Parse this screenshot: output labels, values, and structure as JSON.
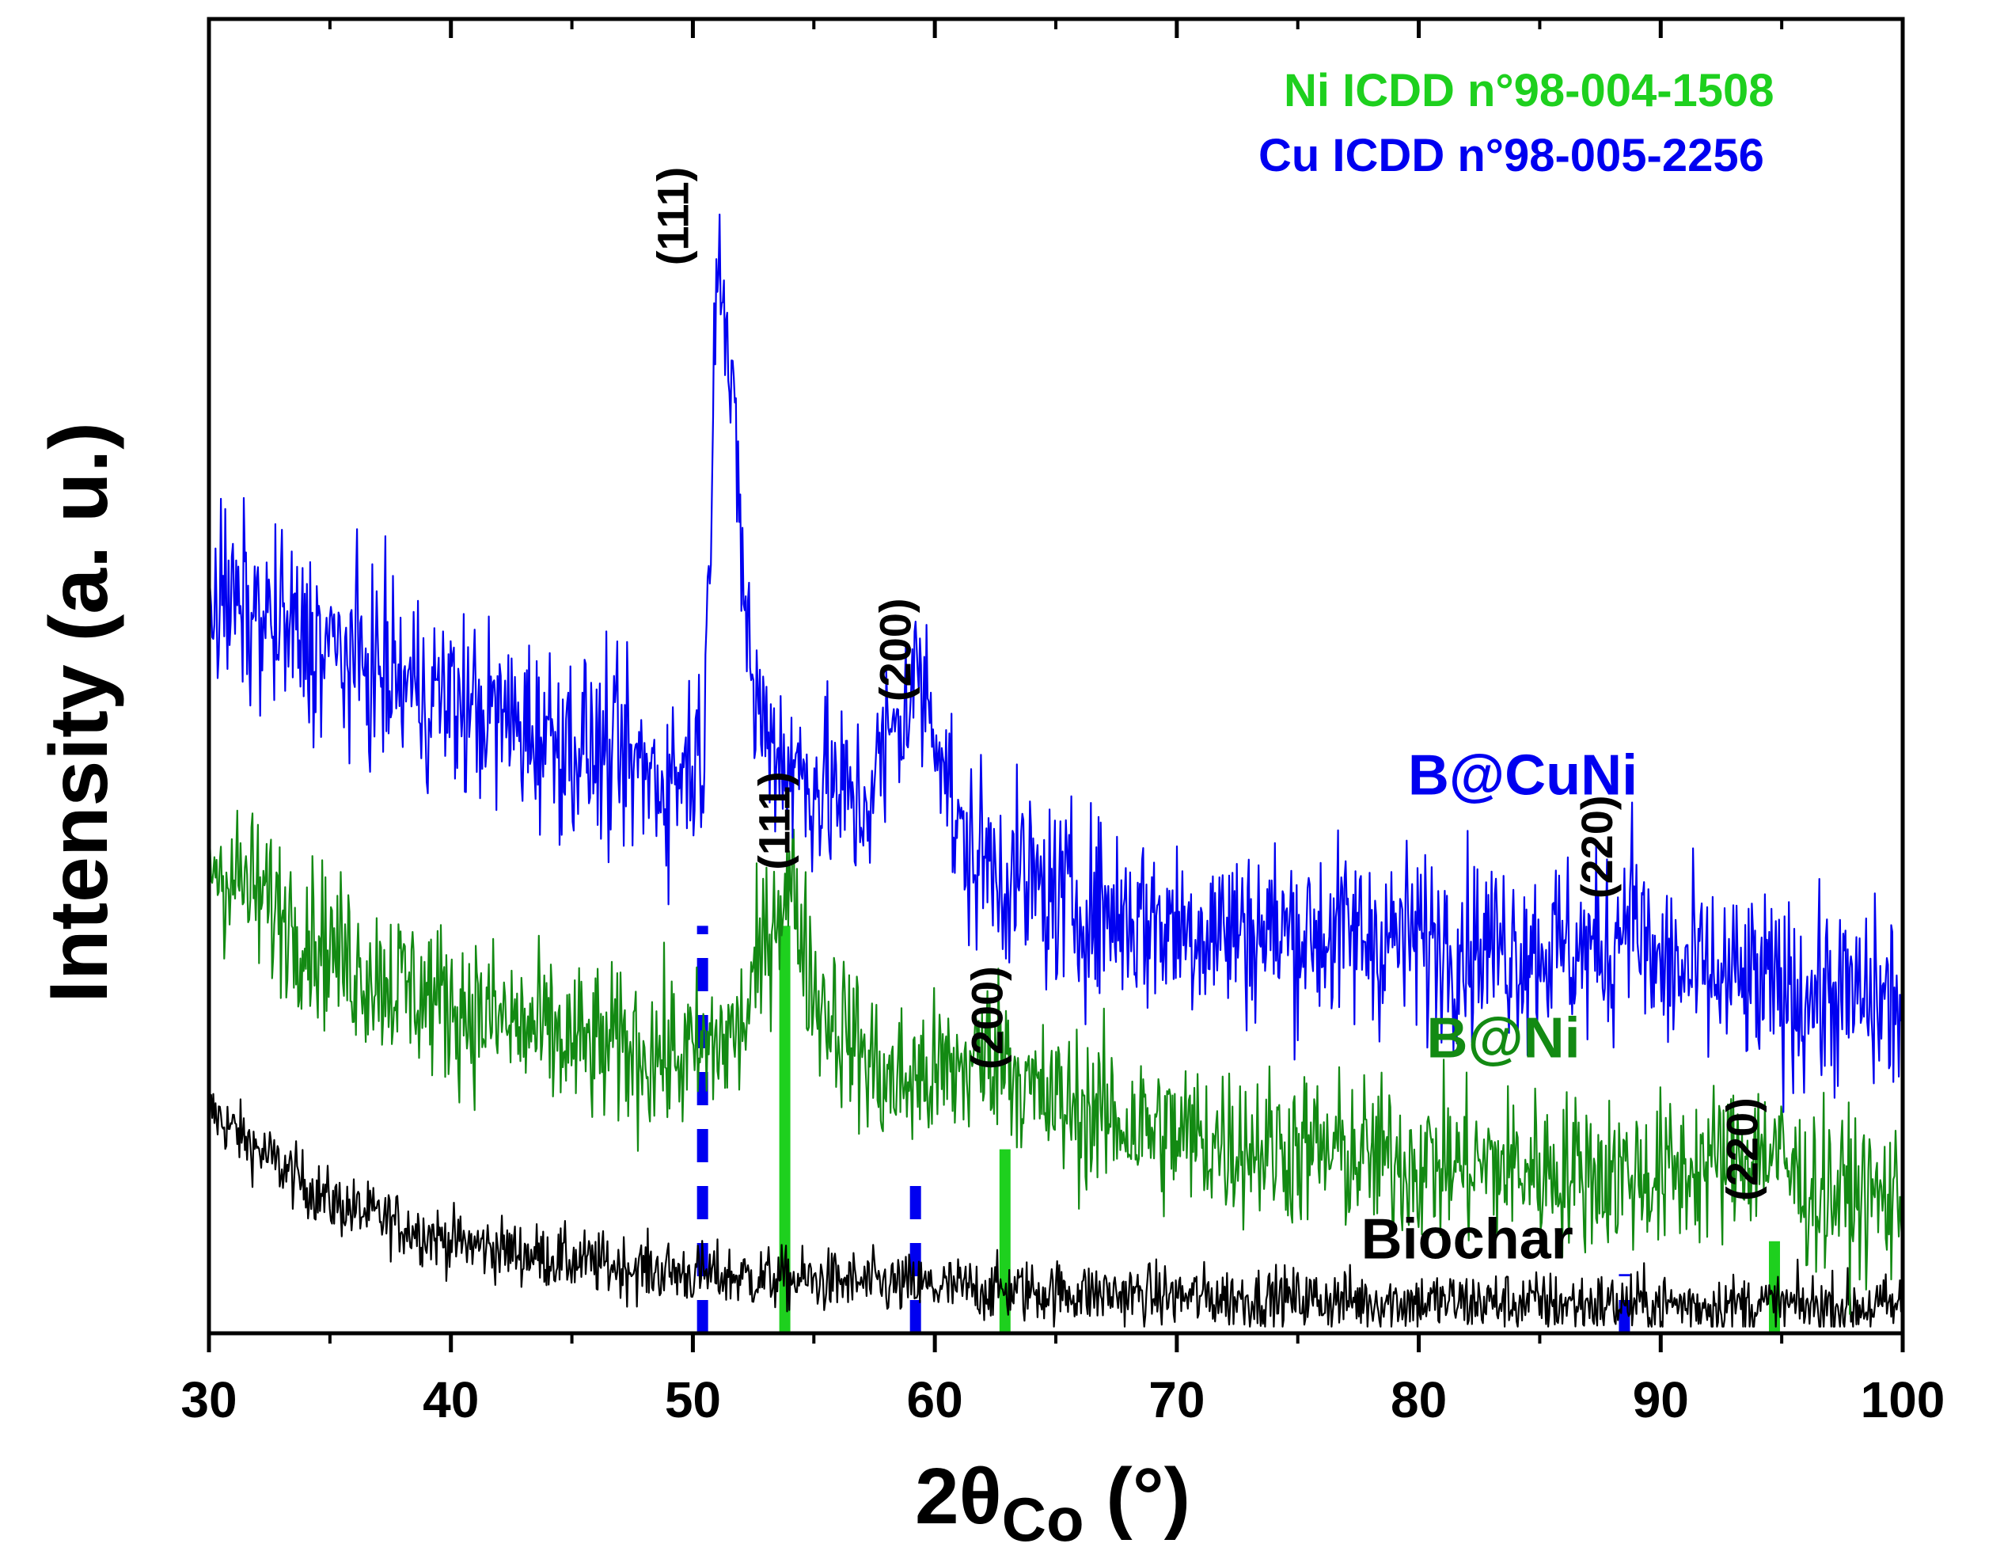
{
  "chart_data": {
    "type": "line",
    "title": "",
    "xlabel_main": "2θ",
    "xlabel_sub": "Co",
    "xlabel_unit": " (°)",
    "ylabel": "Intensity (a. u.)",
    "xlim": [
      30,
      100
    ],
    "ylim": [
      0,
      1
    ],
    "x_ticks": [
      30,
      40,
      50,
      60,
      70,
      80,
      90,
      100
    ],
    "x_tick_labels": [
      "30",
      "40",
      "50",
      "60",
      "70",
      "80",
      "90",
      "100"
    ],
    "y_ticks_shown": false,
    "grid": false,
    "legend": [
      {
        "text": "Ni ICDD n°98-004-1508",
        "color": "#1ed01e"
      },
      {
        "text": "Cu ICDD n°98-005-2256",
        "color": "#0000f0"
      }
    ],
    "series": [
      {
        "name": "B@CuNi",
        "label": "B@CuNi",
        "color": "#0000f0",
        "noise": 0.035,
        "profile": [
          [
            30,
            0.56
          ],
          [
            35,
            0.52
          ],
          [
            40,
            0.48
          ],
          [
            45,
            0.45
          ],
          [
            49,
            0.42
          ],
          [
            50.5,
            0.45
          ],
          [
            51.0,
            0.86
          ],
          [
            51.6,
            0.7
          ],
          [
            52.5,
            0.48
          ],
          [
            54,
            0.43
          ],
          [
            57,
            0.4
          ],
          [
            59.3,
            0.5
          ],
          [
            60.2,
            0.46
          ],
          [
            61,
            0.37
          ],
          [
            65,
            0.33
          ],
          [
            70,
            0.31
          ],
          [
            80,
            0.3
          ],
          [
            88,
            0.29
          ],
          [
            88.7,
            0.34
          ],
          [
            89.5,
            0.28
          ],
          [
            95,
            0.26
          ],
          [
            100,
            0.25
          ]
        ]
      },
      {
        "name": "B@Ni",
        "label": "B@Ni",
        "color": "#138a13",
        "noise": 0.03,
        "profile": [
          [
            30,
            0.36
          ],
          [
            33,
            0.32
          ],
          [
            36,
            0.28
          ],
          [
            40,
            0.25
          ],
          [
            45,
            0.22
          ],
          [
            50,
            0.21
          ],
          [
            52,
            0.23
          ],
          [
            53.5,
            0.33
          ],
          [
            54.1,
            0.34
          ],
          [
            55,
            0.26
          ],
          [
            58,
            0.19
          ],
          [
            61,
            0.2
          ],
          [
            62.8,
            0.22
          ],
          [
            64,
            0.18
          ],
          [
            70,
            0.15
          ],
          [
            80,
            0.13
          ],
          [
            90,
            0.12
          ],
          [
            94.5,
            0.14
          ],
          [
            96,
            0.11
          ],
          [
            100,
            0.1
          ]
        ]
      },
      {
        "name": "Biochar",
        "label": "Biochar",
        "color": "#000000",
        "noise": 0.012,
        "profile": [
          [
            30,
            0.17
          ],
          [
            32,
            0.14
          ],
          [
            35,
            0.1
          ],
          [
            40,
            0.07
          ],
          [
            45,
            0.055
          ],
          [
            50,
            0.045
          ],
          [
            60,
            0.035
          ],
          [
            70,
            0.028
          ],
          [
            80,
            0.024
          ],
          [
            90,
            0.022
          ],
          [
            100,
            0.02
          ]
        ]
      }
    ],
    "reference_lines": [
      {
        "phase": "Cu",
        "color": "#0000f0",
        "style": "dashed",
        "x": 50.4,
        "height": 0.31
      },
      {
        "phase": "Cu",
        "color": "#0000f0",
        "style": "dashed",
        "x": 59.2,
        "height": 0.13
      },
      {
        "phase": "Cu",
        "color": "#0000f0",
        "style": "dashed",
        "x": 88.5,
        "height": 0.045
      },
      {
        "phase": "Ni",
        "color": "#1ed01e",
        "style": "solid",
        "x": 53.8,
        "height": 0.31
      },
      {
        "phase": "Ni",
        "color": "#1ed01e",
        "style": "solid",
        "x": 62.9,
        "height": 0.14
      },
      {
        "phase": "Ni",
        "color": "#1ed01e",
        "style": "solid",
        "x": 94.7,
        "height": 0.07
      }
    ],
    "annotations": [
      {
        "text": "(111)",
        "x": 49.8,
        "y": 0.85,
        "rotate": true,
        "color": "#000000"
      },
      {
        "text": "(200)",
        "x": 59.0,
        "y": 0.52,
        "rotate": true,
        "color": "#000000"
      },
      {
        "text": "(220)",
        "x": 88.0,
        "y": 0.37,
        "rotate": true,
        "color": "#000000"
      },
      {
        "text": "(111)",
        "x": 54.0,
        "y": 0.39,
        "rotate": true,
        "color": "#000000"
      },
      {
        "text": "(200)",
        "x": 62.8,
        "y": 0.24,
        "rotate": true,
        "color": "#000000"
      },
      {
        "text": "(220)",
        "x": 94.0,
        "y": 0.14,
        "rotate": true,
        "color": "#000000"
      },
      {
        "text": "B@CuNi",
        "x": 84.3,
        "y": 0.41,
        "rotate": false,
        "color": "#0000f0"
      },
      {
        "text": "B@Ni",
        "x": 83.5,
        "y": 0.21,
        "rotate": false,
        "color": "#138a13"
      },
      {
        "text": "Biochar",
        "x": 82.0,
        "y": 0.057,
        "rotate": false,
        "color": "#000000"
      }
    ]
  }
}
